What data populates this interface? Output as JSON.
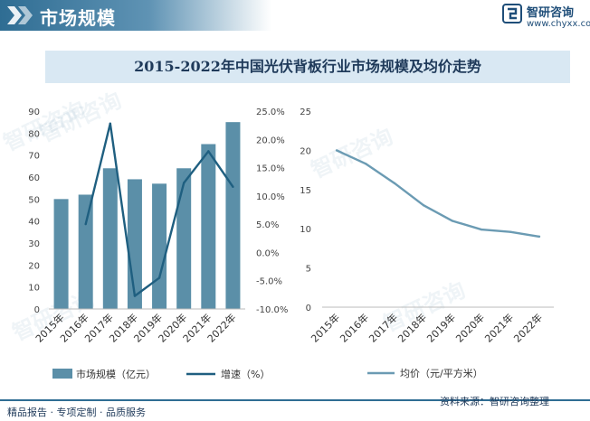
{
  "header": {
    "section_title": "市场规模",
    "brand_name": "智研咨询",
    "brand_url": "www.chyxx.com"
  },
  "watermark_text": "智研咨询",
  "footer": {
    "left_text": "精品报告 · 专项定制 · 品质服务",
    "source_text": "资料来源：智研咨询整理"
  },
  "colors": {
    "accent": "#2f6d93",
    "bar": "#5b8fa8",
    "growth_line": "#1f5f80",
    "price_line": "#6b9bb3",
    "title_bg": "#d9e8f3"
  },
  "chart_data": [
    {
      "type": "bar+line",
      "title": "2015-2022年中国光伏背板行业市场规模及均价走势",
      "categories": [
        "2015年",
        "2016年",
        "2017年",
        "2018年",
        "2019年",
        "2020年",
        "2021年",
        "2022年"
      ],
      "bar_series": {
        "name": "市场规模（亿元）",
        "values": [
          50,
          52,
          64,
          59,
          57,
          64,
          75,
          85
        ]
      },
      "line_series": {
        "name": "增速（%）",
        "values": [
          null,
          5.0,
          22.8,
          -7.7,
          -4.5,
          12.3,
          17.9,
          11.6
        ]
      },
      "y_left": {
        "min": 0,
        "max": 90,
        "step": 10,
        "ticks": [
          "0",
          "10",
          "20",
          "30",
          "40",
          "50",
          "60",
          "70",
          "80",
          "90"
        ]
      },
      "y_right": {
        "min": -10,
        "max": 25,
        "step": 5,
        "ticks": [
          "-10.0%",
          "-5.0%",
          "0.0%",
          "5.0%",
          "10.0%",
          "15.0%",
          "20.0%",
          "25.0%"
        ]
      },
      "legend": [
        "市场规模（亿元）",
        "增速（%）"
      ],
      "legend_position": "bottom"
    },
    {
      "type": "line",
      "categories": [
        "2015年",
        "2016年",
        "2017年",
        "2018年",
        "2019年",
        "2020年",
        "2021年",
        "2022年"
      ],
      "series": [
        {
          "name": "均价（元/平方米）",
          "values": [
            20,
            18.3,
            15.8,
            13,
            11,
            9.9,
            9.6,
            9
          ]
        }
      ],
      "y": {
        "min": 0,
        "max": 25,
        "step": 5,
        "ticks": [
          "0",
          "5",
          "10",
          "15",
          "20",
          "25"
        ]
      },
      "legend": [
        "均价（元/平方米）"
      ],
      "legend_position": "bottom"
    }
  ]
}
